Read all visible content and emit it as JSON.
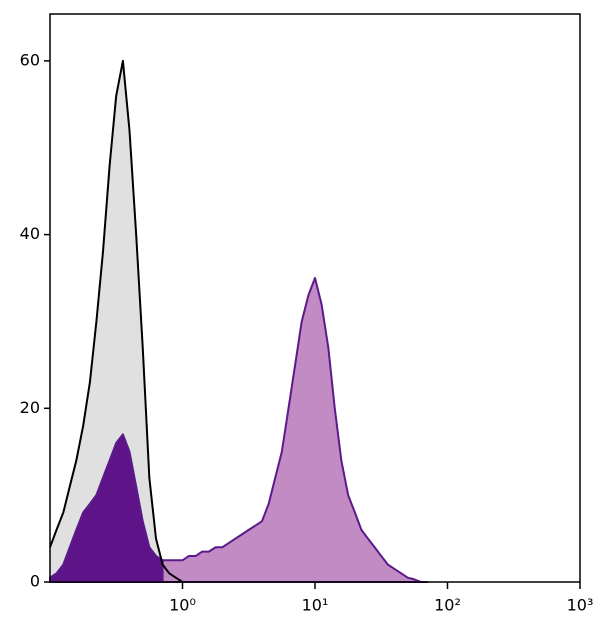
{
  "chart_data": {
    "type": "histogram-overlay",
    "x": [
      0.1,
      0.112,
      0.126,
      0.141,
      0.158,
      0.178,
      0.2,
      0.224,
      0.251,
      0.282,
      0.316,
      0.355,
      0.398,
      0.447,
      0.501,
      0.562,
      0.631,
      0.708,
      0.794,
      0.891,
      1,
      1.12,
      1.26,
      1.41,
      1.58,
      1.78,
      2,
      2.24,
      2.51,
      2.82,
      3.16,
      3.55,
      3.98,
      4.47,
      5.01,
      5.62,
      6.31,
      7.08,
      7.94,
      8.91,
      10,
      11.2,
      12.6,
      14.1,
      15.8,
      17.8,
      20,
      22.4,
      25.1,
      28.2,
      31.6,
      35.5,
      39.8,
      44.7,
      50.1,
      56.2,
      63.1,
      70.8
    ],
    "series": [
      {
        "color": "#000000",
        "fill": "#e0e0e0",
        "values": [
          4,
          6,
          8,
          11,
          14,
          18,
          23,
          30,
          38,
          48,
          56,
          60,
          52,
          40,
          27,
          12,
          5,
          2,
          1,
          0.5,
          0,
          null,
          null,
          null,
          null,
          null,
          null,
          null,
          null,
          null,
          null,
          null,
          null,
          null,
          null,
          null,
          null,
          null,
          null,
          null,
          null,
          null,
          null,
          null,
          null,
          null,
          null,
          null,
          null,
          null,
          null,
          null,
          null,
          null,
          null,
          null,
          null,
          null
        ]
      },
      {
        "color": "#5a1a8a",
        "fill": "#5e1488",
        "values": [
          0.5,
          1,
          2,
          4,
          6,
          8,
          9,
          10,
          12,
          14,
          16,
          17,
          15,
          11,
          7,
          4,
          3,
          2.5,
          null,
          null,
          null,
          null,
          null,
          null,
          null,
          null,
          null,
          null,
          null,
          null,
          null,
          null,
          null,
          null,
          null,
          null,
          null,
          null,
          null,
          null,
          null,
          null,
          null,
          null,
          null,
          null,
          null,
          null,
          null,
          null,
          null,
          null,
          null,
          null,
          null,
          null,
          null,
          null
        ]
      },
      {
        "color": "#5a1a8a",
        "fill": "#c28bc4",
        "values": [
          null,
          null,
          null,
          null,
          null,
          null,
          null,
          null,
          null,
          null,
          null,
          null,
          null,
          null,
          null,
          null,
          null,
          2.5,
          2.5,
          2.5,
          2.5,
          3,
          3,
          3.5,
          3.5,
          4,
          4,
          4.5,
          5,
          5.5,
          6,
          6.5,
          7,
          9,
          12,
          15,
          20,
          25,
          30,
          33,
          35,
          32,
          27,
          20,
          14,
          10,
          8,
          6,
          5,
          4,
          3,
          2,
          1.5,
          1,
          0.5,
          0.3,
          0,
          0
        ]
      }
    ],
    "xlog": true,
    "xlim": [
      0.1,
      1000
    ],
    "xticks": [
      {
        "value": 1,
        "label": "10⁰"
      },
      {
        "value": 10,
        "label": "10¹"
      },
      {
        "value": 100,
        "label": "10²"
      },
      {
        "value": 1000,
        "label": "10³"
      }
    ],
    "ylim": [
      0,
      65.4
    ],
    "yticks": [
      0,
      20,
      40,
      60
    ]
  }
}
